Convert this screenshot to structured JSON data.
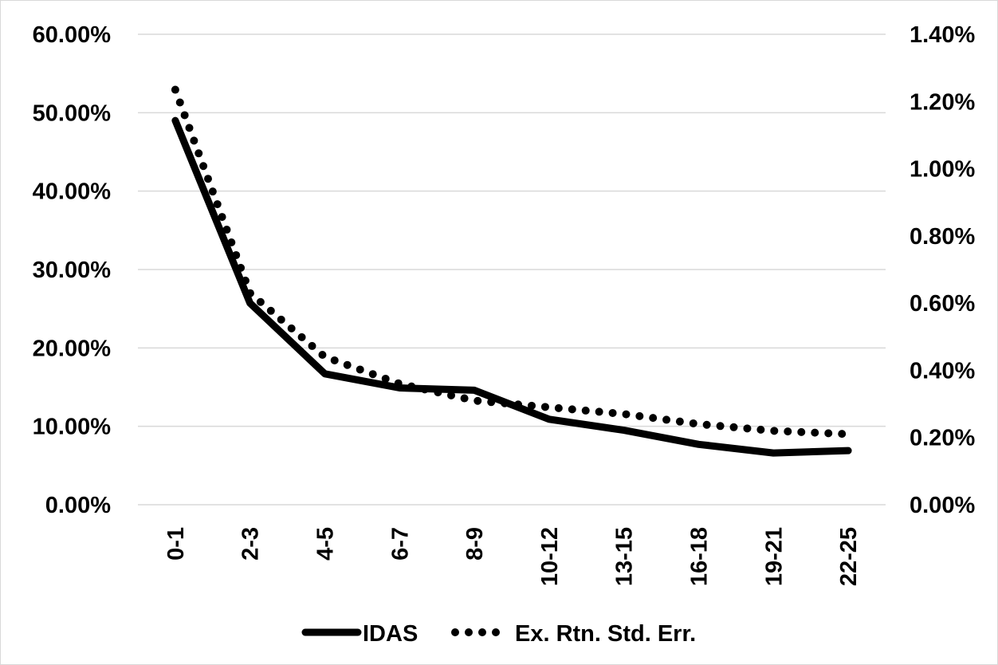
{
  "chart_data": {
    "type": "line",
    "categories": [
      "0-1",
      "2-3",
      "4-5",
      "6-7",
      "8-9",
      "10-12",
      "13-15",
      "16-18",
      "19-21",
      "22-25"
    ],
    "series": [
      {
        "name": "IDAS",
        "axis": "left",
        "style": "solid",
        "color": "#000000",
        "values": [
          0.49,
          0.257,
          0.167,
          0.149,
          0.146,
          0.109,
          0.095,
          0.077,
          0.066,
          0.069
        ]
      },
      {
        "name": "Ex. Rtn. Std. Err.",
        "axis": "right",
        "style": "dotted",
        "color": "#000000",
        "values": [
          0.01235,
          0.0063,
          0.0044,
          0.0036,
          0.0031,
          0.0029,
          0.0027,
          0.0024,
          0.0022,
          0.0021
        ]
      }
    ],
    "y_left": {
      "lim": [
        0,
        0.6
      ],
      "ticks": [
        "0.00%",
        "10.00%",
        "20.00%",
        "30.00%",
        "40.00%",
        "50.00%",
        "60.00%"
      ]
    },
    "y_right": {
      "lim": [
        0,
        0.014
      ],
      "ticks": [
        "0.00%",
        "0.20%",
        "0.40%",
        "0.60%",
        "0.80%",
        "1.00%",
        "1.20%",
        "1.40%"
      ]
    },
    "grid": true,
    "legend": "bottom",
    "title": "",
    "xlabel": "",
    "ylabel": ""
  }
}
